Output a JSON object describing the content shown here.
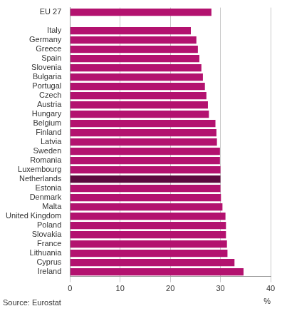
{
  "chart_data": {
    "type": "bar",
    "orientation": "horizontal",
    "categories": [
      "EU 27",
      null,
      "Italy",
      "Germany",
      "Greece",
      "Spain",
      "Slovenia",
      "Bulgaria",
      "Portugal",
      "Czech",
      "Austria",
      "Hungary",
      "Belgium",
      "Finland",
      "Latvia",
      "Sweden",
      "Romania",
      "Luxembourg",
      "Netherlands",
      "Estonia",
      "Denmark",
      "Malta",
      "United Kingdom",
      "Poland",
      "Slovakia",
      "France",
      "Lithuania",
      "Cyprus",
      "Ireland"
    ],
    "values": [
      28.2,
      null,
      24.1,
      25.2,
      25.5,
      25.8,
      26.2,
      26.5,
      26.9,
      27.2,
      27.5,
      27.7,
      29.0,
      29.2,
      29.3,
      29.9,
      29.9,
      30.0,
      30.0,
      30.0,
      30.1,
      30.4,
      31.0,
      31.1,
      31.1,
      31.3,
      31.4,
      32.8,
      34.6
    ],
    "colors": [
      "#b3126f",
      "#b3126f",
      "#b3126f",
      "#b3126f",
      "#b3126f",
      "#b3126f",
      "#b3126f",
      "#b3126f",
      "#b3126f",
      "#b3126f",
      "#b3126f",
      "#b3126f",
      "#b3126f",
      "#b3126f",
      "#b3126f",
      "#b3126f",
      "#b3126f",
      "#b3126f",
      "#5c0a3e",
      "#b3126f",
      "#b3126f",
      "#b3126f",
      "#b3126f",
      "#b3126f",
      "#b3126f",
      "#b3126f",
      "#b3126f",
      "#b3126f",
      "#b3126f"
    ],
    "xlabel": "%",
    "xlim": [
      0,
      40
    ],
    "xticks": [
      0,
      10,
      20,
      30,
      40
    ],
    "grid": true,
    "annotations": [
      "Source: Eurostat"
    ]
  }
}
